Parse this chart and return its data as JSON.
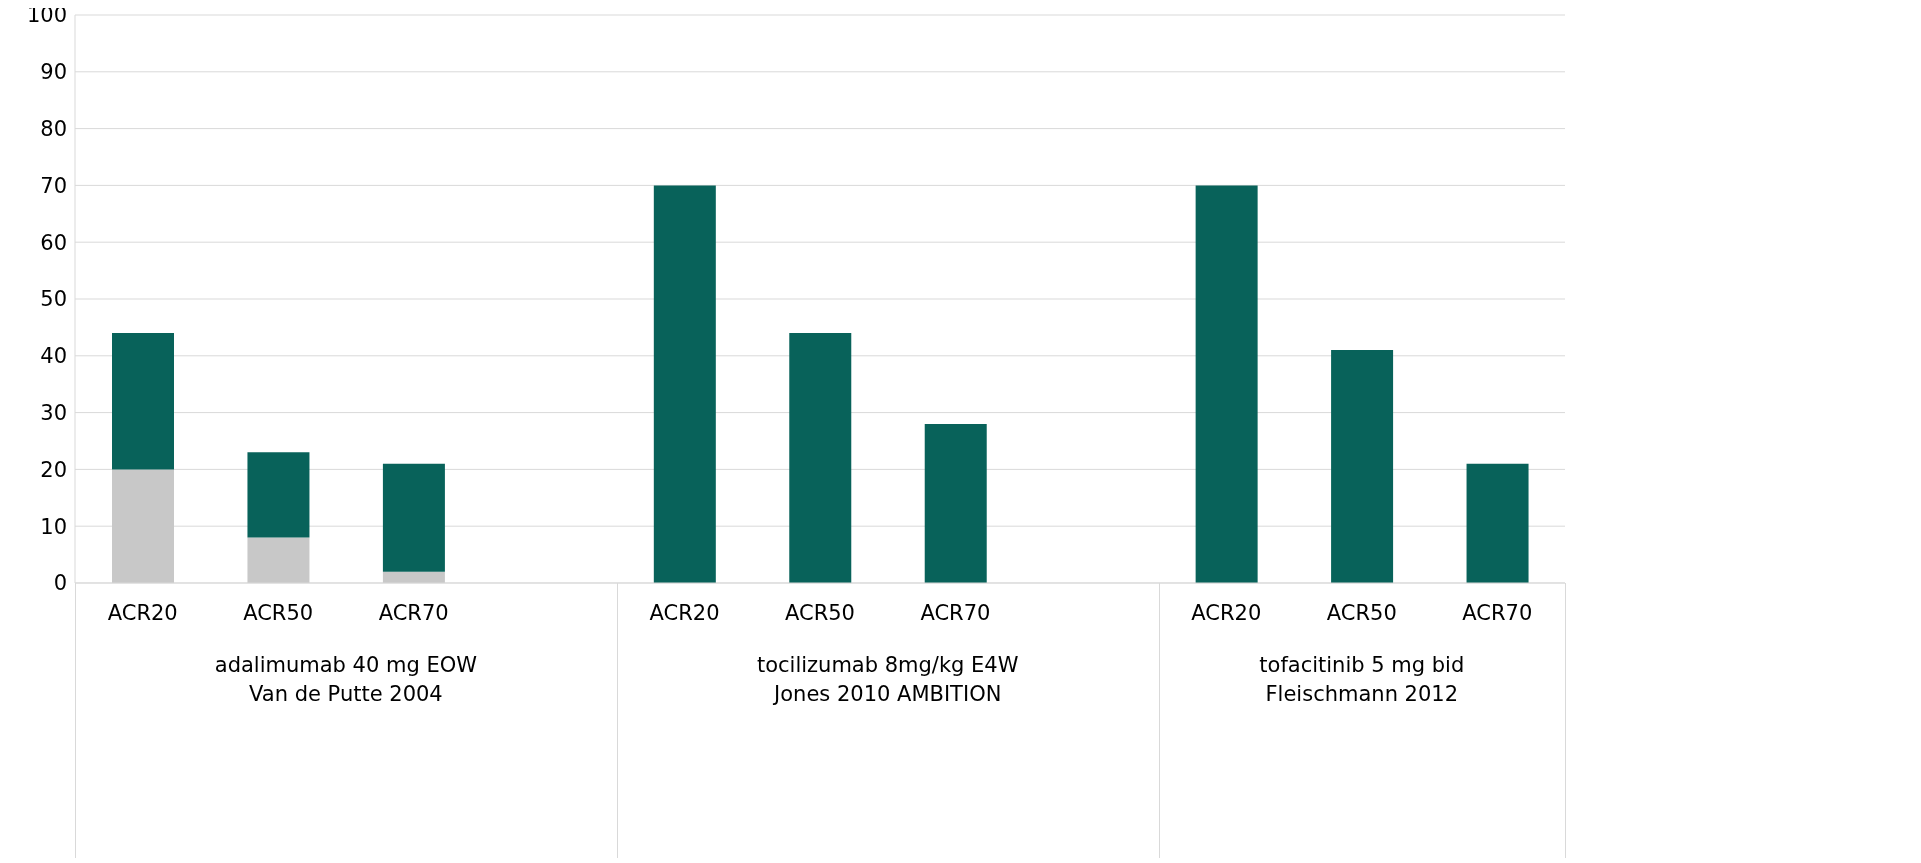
{
  "chart_data": {
    "type": "bar",
    "stacked": true,
    "categories": [
      "ACR20",
      "ACR50",
      "ACR70",
      null,
      "ACR20",
      "ACR50",
      "ACR70",
      null,
      "ACR20",
      "ACR50",
      "ACR70"
    ],
    "series": [
      {
        "color": "#c8c8c8",
        "values": [
          20,
          8,
          2,
          null,
          null,
          null,
          null,
          null,
          null,
          null,
          null
        ]
      },
      {
        "color": "#08625a",
        "values": [
          24,
          15,
          19,
          null,
          70,
          44,
          28,
          null,
          70,
          41,
          21
        ]
      }
    ],
    "ylim": [
      0,
      100
    ],
    "yticks": [
      0,
      10,
      20,
      30,
      40,
      50,
      60,
      70,
      80,
      90,
      100
    ],
    "grid": "y",
    "annotations": [
      "adalimumab 40 mg EOW\nVan de Putte 2004",
      "tocilizumab 8mg/kg E4W\nJones 2010 AMBITION",
      "tofacitinib 5 mg bid\nFleischmann 2012"
    ]
  }
}
